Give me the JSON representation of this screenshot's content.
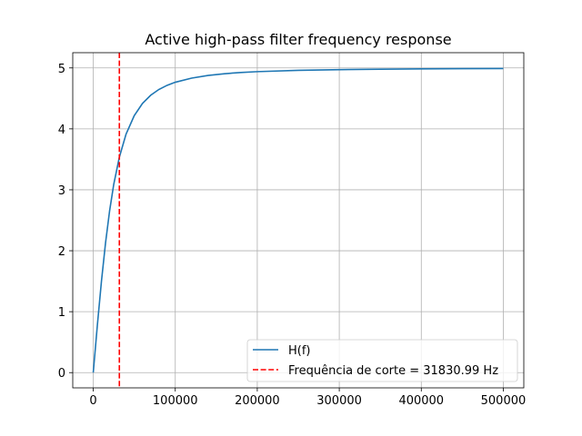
{
  "chart_data": {
    "type": "line",
    "title": "Active high-pass filter frequency response",
    "xlabel": "",
    "ylabel": "",
    "xlim": [
      -25000,
      525000
    ],
    "ylim": [
      -0.25,
      5.25
    ],
    "x_ticks": [
      0,
      100000,
      200000,
      300000,
      400000,
      500000
    ],
    "x_tick_labels": [
      "0",
      "100000",
      "200000",
      "300000",
      "400000",
      "500000"
    ],
    "y_ticks": [
      0,
      1,
      2,
      3,
      4,
      5
    ],
    "y_tick_labels": [
      "0",
      "1",
      "2",
      "3",
      "4",
      "5"
    ],
    "grid": true,
    "legend_position": "lower-right",
    "series": [
      {
        "name": "H(f)",
        "color": "#1f77b4",
        "style": "solid",
        "x": [
          0,
          5000,
          10000,
          15000,
          20000,
          25000,
          31830.99,
          40000,
          50000,
          60000,
          70000,
          80000,
          90000,
          100000,
          120000,
          140000,
          160000,
          180000,
          200000,
          250000,
          300000,
          350000,
          400000,
          450000,
          500000
        ],
        "y": [
          0,
          0.776,
          1.498,
          2.131,
          2.661,
          3.09,
          3.536,
          3.913,
          4.218,
          4.417,
          4.551,
          4.646,
          4.714,
          4.765,
          4.833,
          4.876,
          4.905,
          4.925,
          4.939,
          4.96,
          4.972,
          4.979,
          4.984,
          4.988,
          4.99
        ]
      },
      {
        "name": "Frequência de corte = 31830.99 Hz",
        "color": "#ff0000",
        "style": "dashed",
        "vline_x": 31830.99
      }
    ]
  }
}
